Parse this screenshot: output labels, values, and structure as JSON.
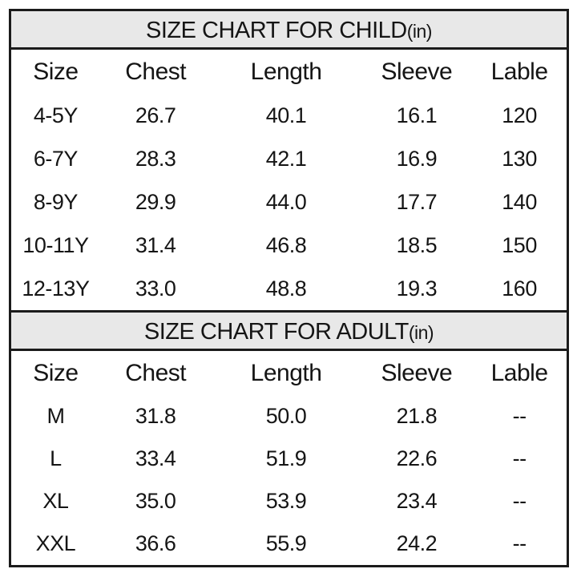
{
  "colors": {
    "title_background": "#e8e8e8",
    "border": "#1b1b1b",
    "text": "#151515",
    "page_background": "#ffffff"
  },
  "tables": [
    {
      "title": "SIZE CHART FOR CHILD",
      "title_unit": "(in)",
      "columns": [
        "Size",
        "Chest",
        "Length",
        "Sleeve",
        "Lable"
      ],
      "rows": [
        [
          "4-5Y",
          "26.7",
          "40.1",
          "16.1",
          "120"
        ],
        [
          "6-7Y",
          "28.3",
          "42.1",
          "16.9",
          "130"
        ],
        [
          "8-9Y",
          "29.9",
          "44.0",
          "17.7",
          "140"
        ],
        [
          "10-11Y",
          "31.4",
          "46.8",
          "18.5",
          "150"
        ],
        [
          "12-13Y",
          "33.0",
          "48.8",
          "19.3",
          "160"
        ]
      ]
    },
    {
      "title": "SIZE CHART FOR ADULT",
      "title_unit": "(in)",
      "columns": [
        "Size",
        "Chest",
        "Length",
        "Sleeve",
        "Lable"
      ],
      "rows": [
        [
          "M",
          "31.8",
          "50.0",
          "21.8",
          "--"
        ],
        [
          "L",
          "33.4",
          "51.9",
          "22.6",
          "--"
        ],
        [
          "XL",
          "35.0",
          "53.9",
          "23.4",
          "--"
        ],
        [
          "XXL",
          "36.6",
          "55.9",
          "24.2",
          "--"
        ]
      ]
    }
  ]
}
